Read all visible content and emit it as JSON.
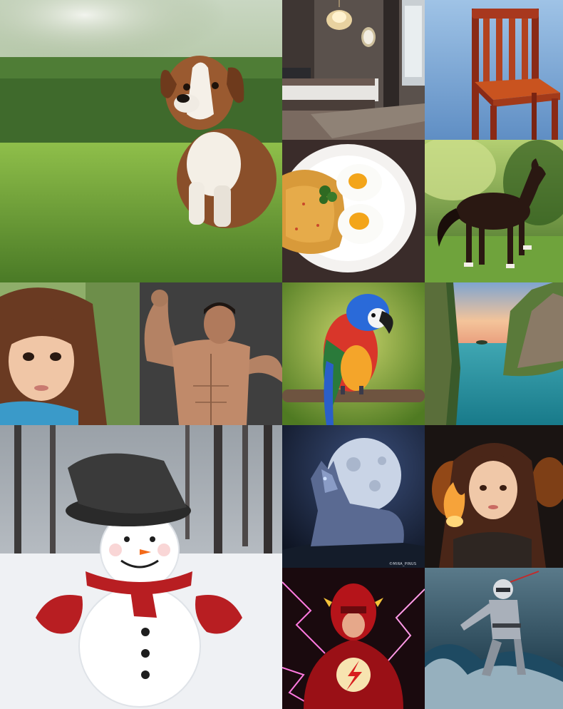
{
  "collage": {
    "tiles": [
      {
        "subject": "dog-on-grass"
      },
      {
        "subject": "bedroom"
      },
      {
        "subject": "wooden-chair"
      },
      {
        "subject": "rice-and-fried-eggs"
      },
      {
        "subject": "horse"
      },
      {
        "subject": "girl-portrait"
      },
      {
        "subject": "muscular-man"
      },
      {
        "subject": "parrot"
      },
      {
        "subject": "sea-cliffs"
      },
      {
        "subject": "snowman"
      },
      {
        "subject": "wolf-and-moon"
      },
      {
        "subject": "fire-girl"
      },
      {
        "subject": "flash-superhero"
      },
      {
        "subject": "armored-rider-waves"
      }
    ],
    "wolf_watermark": "©MIRA_PINUS"
  }
}
